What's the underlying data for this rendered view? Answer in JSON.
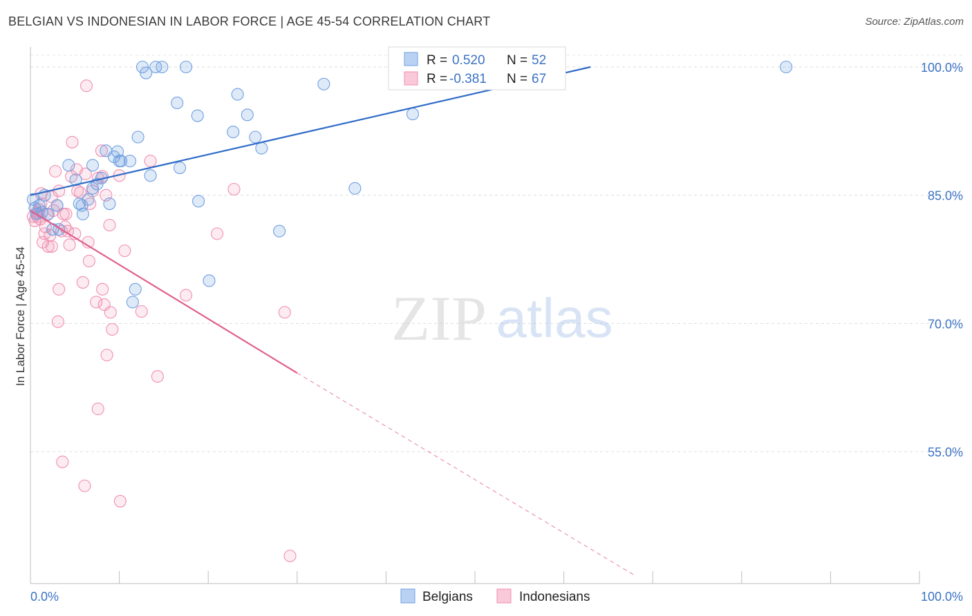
{
  "header": {
    "title": "BELGIAN VS INDONESIAN IN LABOR FORCE | AGE 45-54 CORRELATION CHART",
    "source": "Source: ZipAtlas.com"
  },
  "colors": {
    "belgians": "#6f9fe0",
    "belgians_line": "#2f6bc7",
    "indonesians": "#f08fb0",
    "indonesians_line": "#e0608e",
    "tick": "#3b72c4"
  },
  "chart_data": {
    "type": "scatter",
    "title": "BELGIAN VS INDONESIAN IN LABOR FORCE | AGE 45-54 CORRELATION CHART",
    "xlabel": "",
    "ylabel": "In Labor Force | Age 45-54",
    "xlim": [
      0,
      100
    ],
    "ylim": [
      41,
      101.5
    ],
    "x_tick_labels": [
      "0.0%",
      "100.0%"
    ],
    "y_ticks": [
      55,
      70,
      85,
      100
    ],
    "y_tick_labels": [
      "55.0%",
      "70.0%",
      "85.0%",
      "100.0%"
    ],
    "grid": true,
    "watermark": "ZIPatlas",
    "legend": {
      "position": "top-center",
      "rows": [
        {
          "r_label": "R =",
          "r_value": "0.520",
          "n_label": "N =",
          "n_value": "52"
        },
        {
          "r_label": "R =",
          "r_value": "-0.381",
          "n_label": "N =",
          "n_value": "67"
        }
      ]
    },
    "series": [
      {
        "name": "Belgians",
        "color": "#6f9fe0",
        "trend": {
          "x0": 0,
          "y0": 85.0,
          "x1": 63,
          "y1": 100.0,
          "dashed_to": null
        },
        "points": [
          [
            0.3,
            84.5
          ],
          [
            0.5,
            83.5
          ],
          [
            0.7,
            82.8
          ],
          [
            1.0,
            83.8
          ],
          [
            1.3,
            83.0
          ],
          [
            1.6,
            85.0
          ],
          [
            2.0,
            82.8
          ],
          [
            2.5,
            81.0
          ],
          [
            3.0,
            83.8
          ],
          [
            3.2,
            81.0
          ],
          [
            4.3,
            88.5
          ],
          [
            5.1,
            86.8
          ],
          [
            5.5,
            84.0
          ],
          [
            5.8,
            83.8
          ],
          [
            5.9,
            82.8
          ],
          [
            6.5,
            84.5
          ],
          [
            7.0,
            85.8
          ],
          [
            7.5,
            86.3
          ],
          [
            7.0,
            88.5
          ],
          [
            8.0,
            87.0
          ],
          [
            8.5,
            90.2
          ],
          [
            8.9,
            84.0
          ],
          [
            9.4,
            89.5
          ],
          [
            10.0,
            89.0
          ],
          [
            9.8,
            90.1
          ],
          [
            10.2,
            89.0
          ],
          [
            11.2,
            89.0
          ],
          [
            12.1,
            91.8
          ],
          [
            12.6,
            100.0
          ],
          [
            13.0,
            99.3
          ],
          [
            13.5,
            87.3
          ],
          [
            14.1,
            100.0
          ],
          [
            14.8,
            100.0
          ],
          [
            16.5,
            95.8
          ],
          [
            16.8,
            88.2
          ],
          [
            17.5,
            100.0
          ],
          [
            18.8,
            94.3
          ],
          [
            18.9,
            84.3
          ],
          [
            20.1,
            75.0
          ],
          [
            11.5,
            72.5
          ],
          [
            11.8,
            74.0
          ],
          [
            22.8,
            92.4
          ],
          [
            23.3,
            96.8
          ],
          [
            24.4,
            94.4
          ],
          [
            25.3,
            91.8
          ],
          [
            26.0,
            90.5
          ],
          [
            28.0,
            80.8
          ],
          [
            33.0,
            98.0
          ],
          [
            36.5,
            85.8
          ],
          [
            43.0,
            94.5
          ],
          [
            52.0,
            100.0
          ],
          [
            85.0,
            100.0
          ]
        ]
      },
      {
        "name": "Indonesians",
        "color": "#f08fb0",
        "trend": {
          "x0": 0,
          "y0": 83.2,
          "x1": 30,
          "y1": 64.2,
          "dashed_to": {
            "x": 68,
            "y": 40.5
          }
        },
        "points": [
          [
            0.3,
            82.5
          ],
          [
            0.5,
            82.0
          ],
          [
            0.7,
            83.0
          ],
          [
            0.8,
            82.5
          ],
          [
            1.0,
            83.3
          ],
          [
            1.1,
            82.2
          ],
          [
            1.2,
            84.0
          ],
          [
            1.4,
            79.5
          ],
          [
            1.6,
            80.5
          ],
          [
            1.7,
            81.3
          ],
          [
            1.9,
            82.7
          ],
          [
            2.0,
            79.0
          ],
          [
            2.2,
            80.3
          ],
          [
            2.4,
            79.0
          ],
          [
            2.6,
            83.2
          ],
          [
            2.8,
            87.8
          ],
          [
            3.0,
            83.8
          ],
          [
            3.2,
            85.5
          ],
          [
            3.5,
            80.8
          ],
          [
            3.7,
            82.8
          ],
          [
            3.9,
            81.3
          ],
          [
            4.0,
            82.8
          ],
          [
            4.2,
            80.8
          ],
          [
            4.4,
            79.2
          ],
          [
            4.6,
            87.2
          ],
          [
            4.7,
            91.2
          ],
          [
            5.0,
            80.5
          ],
          [
            5.2,
            88.0
          ],
          [
            5.3,
            85.5
          ],
          [
            5.6,
            85.3
          ],
          [
            6.2,
            87.5
          ],
          [
            6.5,
            79.5
          ],
          [
            6.7,
            84.0
          ],
          [
            7.0,
            85.5
          ],
          [
            6.3,
            97.8
          ],
          [
            7.6,
            87.0
          ],
          [
            8.1,
            87.2
          ],
          [
            8.5,
            85.0
          ],
          [
            6.6,
            77.3
          ],
          [
            5.9,
            74.8
          ],
          [
            3.2,
            74.0
          ],
          [
            3.1,
            70.2
          ],
          [
            7.4,
            72.5
          ],
          [
            8.1,
            74.0
          ],
          [
            8.3,
            72.2
          ],
          [
            8.0,
            90.2
          ],
          [
            8.9,
            81.5
          ],
          [
            9.2,
            69.3
          ],
          [
            9.0,
            71.3
          ],
          [
            10.0,
            87.3
          ],
          [
            10.6,
            78.5
          ],
          [
            12.5,
            71.4
          ],
          [
            13.5,
            89.0
          ],
          [
            8.6,
            66.3
          ],
          [
            7.6,
            60.0
          ],
          [
            14.3,
            63.8
          ],
          [
            21.0,
            80.5
          ],
          [
            17.5,
            73.3
          ],
          [
            22.9,
            85.7
          ],
          [
            28.6,
            71.3
          ],
          [
            3.6,
            53.8
          ],
          [
            6.1,
            51.0
          ],
          [
            10.1,
            49.2
          ],
          [
            29.2,
            42.8
          ],
          [
            2.4,
            84.8
          ],
          [
            1.2,
            85.2
          ],
          [
            0.9,
            82.9
          ]
        ]
      }
    ]
  },
  "bottom_legend": {
    "items": [
      "Belgians",
      "Indonesians"
    ]
  }
}
